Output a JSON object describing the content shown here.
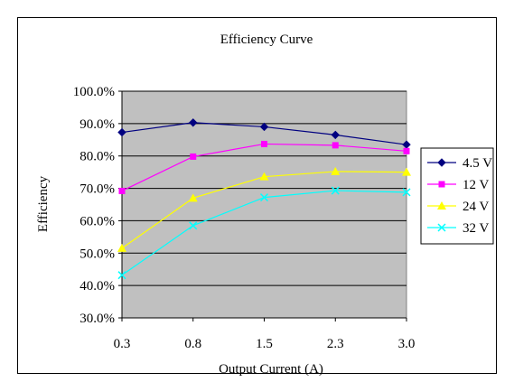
{
  "chart_data": {
    "type": "line",
    "title": "Efficiency Curve",
    "xlabel": "Output Current (A)",
    "ylabel": "Efficiency",
    "categories": [
      "0.3",
      "0.8",
      "1.5",
      "2.3",
      "3.0"
    ],
    "ylim": [
      30.0,
      100.0
    ],
    "yticks": [
      "30.0%",
      "40.0%",
      "50.0%",
      "60.0%",
      "70.0%",
      "80.0%",
      "90.0%",
      "100.0%"
    ],
    "grid": true,
    "legend_position": "right",
    "series": [
      {
        "name": "4.5 V",
        "color": "#000080",
        "marker": "diamond",
        "values": [
          87.3,
          90.3,
          89.0,
          86.5,
          83.5
        ]
      },
      {
        "name": "12 V",
        "color": "#ff00ff",
        "marker": "square",
        "values": [
          69.2,
          79.8,
          83.7,
          83.3,
          81.5
        ]
      },
      {
        "name": "24 V",
        "color": "#ffff00",
        "marker": "triangle",
        "values": [
          51.5,
          67.0,
          73.6,
          75.2,
          75.0
        ]
      },
      {
        "name": "32 V",
        "color": "#00ffff",
        "marker": "x",
        "values": [
          43.2,
          58.5,
          67.2,
          69.3,
          68.8
        ]
      }
    ]
  }
}
